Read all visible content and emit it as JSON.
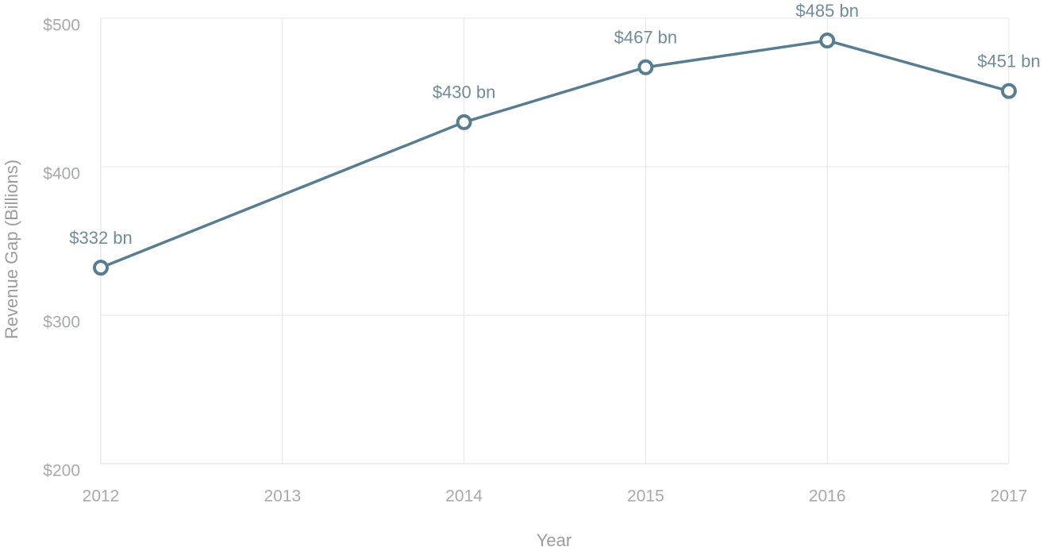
{
  "chart_data": {
    "type": "line",
    "x_label": "Year",
    "y_label": "Revenue Gap (Billions)",
    "x": [
      2012,
      2014,
      2015,
      2016,
      2017
    ],
    "values": [
      332,
      430,
      467,
      485,
      451
    ],
    "value_labels": [
      "$332 bn",
      "$430 bn",
      "$467 bn",
      "$485 bn",
      "$451 bn"
    ],
    "color": "#587d90",
    "xlim": [
      2012,
      2017
    ],
    "xticks": [
      2012,
      2013,
      2014,
      2015,
      2016,
      2017
    ],
    "ylim": [
      200,
      500
    ],
    "yticks": [
      {
        "value": 200,
        "label": "$200"
      },
      {
        "value": 300,
        "label": "$300"
      },
      {
        "value": 400,
        "label": "$400"
      },
      {
        "value": 500,
        "label": "$500"
      }
    ],
    "grid": true
  }
}
